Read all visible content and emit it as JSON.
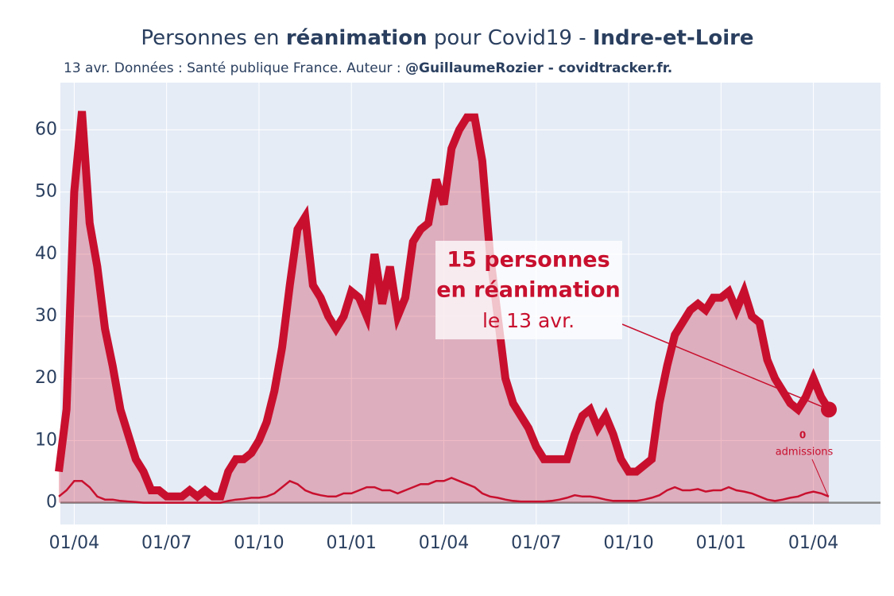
{
  "chart_data": {
    "type": "line",
    "title": [
      "Personnes en ",
      "réanimation",
      " pour Covid19 - ",
      "Indre-et-Loire"
    ],
    "subtitle": [
      "13 avr. Données : Santé publique France. Auteur : ",
      "@GuillaumeRozier - covidtracker.fr."
    ],
    "categories": [
      null,
      null,
      "01/04",
      null,
      null,
      null,
      null,
      null,
      null,
      null,
      null,
      null,
      null,
      null,
      "01/07",
      null,
      null,
      null,
      null,
      null,
      null,
      null,
      null,
      null,
      null,
      null,
      "01/10",
      null,
      null,
      null,
      null,
      null,
      null,
      null,
      null,
      null,
      null,
      null,
      "01/01",
      null,
      null,
      null,
      null,
      null,
      null,
      null,
      null,
      null,
      null,
      null,
      "01/04",
      null,
      null,
      null,
      null,
      null,
      null,
      null,
      null,
      null,
      null,
      null,
      "01/07",
      null,
      null,
      null,
      null,
      null,
      null,
      null,
      null,
      null,
      null,
      null,
      "01/10",
      null,
      null,
      null,
      null,
      null,
      null,
      null,
      null,
      null,
      null,
      null,
      "01/01",
      null,
      null,
      null,
      null,
      null,
      null,
      null,
      null,
      null,
      null,
      null,
      "01/04",
      null,
      null
    ],
    "series": [
      {
        "color": "#c8102e",
        "values": [
          5,
          15,
          50,
          63,
          45,
          38,
          28,
          22,
          15,
          11,
          7,
          5,
          2,
          2,
          1,
          1,
          1,
          2,
          1,
          2,
          1,
          1,
          5,
          7,
          7,
          8,
          10,
          13,
          18,
          25,
          35,
          44,
          46,
          35,
          33,
          30,
          28,
          30,
          34,
          33,
          30,
          40,
          32,
          38,
          30,
          33,
          42,
          44,
          45,
          52,
          48,
          57,
          60,
          62,
          62,
          55,
          40,
          30,
          20,
          16,
          14,
          12,
          9,
          7,
          7,
          7,
          7,
          11,
          14,
          15,
          12,
          14,
          11,
          7,
          5,
          5,
          6,
          7,
          16,
          22,
          27,
          29,
          31,
          32,
          31,
          33,
          33,
          34,
          31,
          34,
          30,
          29,
          23,
          20,
          18,
          16,
          15,
          17,
          20,
          17,
          15
        ]
      },
      {
        "color": "#c8102e",
        "values": [
          1,
          2,
          3.5,
          3.5,
          2.5,
          1,
          0.5,
          0.5,
          0.3,
          0.2,
          0.1,
          0,
          0,
          0,
          0,
          0,
          0,
          0,
          0,
          0,
          0,
          0,
          0.3,
          0.5,
          0.6,
          0.8,
          0.8,
          1,
          1.5,
          2.5,
          3.5,
          3,
          2,
          1.5,
          1.2,
          1,
          1,
          1.5,
          1.5,
          2,
          2.5,
          2.5,
          2,
          2,
          1.5,
          2,
          2.5,
          3,
          3,
          3.5,
          3.5,
          4,
          3.5,
          3,
          2.5,
          1.5,
          1,
          0.8,
          0.5,
          0.3,
          0.2,
          0.2,
          0.2,
          0.2,
          0.3,
          0.5,
          0.8,
          1.2,
          1,
          1,
          0.8,
          0.5,
          0.3,
          0.3,
          0.3,
          0.3,
          0.5,
          0.8,
          1.2,
          2,
          2.5,
          2,
          2,
          2.2,
          1.8,
          2,
          2,
          2.5,
          2,
          1.8,
          1.5,
          1,
          0.5,
          0.3,
          0.5,
          0.8,
          1,
          1.5,
          1.8,
          1.5,
          1
        ]
      }
    ],
    "ylim": [
      -3.5,
      67.6
    ],
    "yticks": [
      0,
      10,
      20,
      30,
      40,
      50,
      60
    ],
    "grid": true,
    "annotation": [
      "15 personnes",
      "en réanimation",
      "le 13 avr."
    ],
    "admissions_annotation": [
      "0",
      "admissions"
    ]
  }
}
